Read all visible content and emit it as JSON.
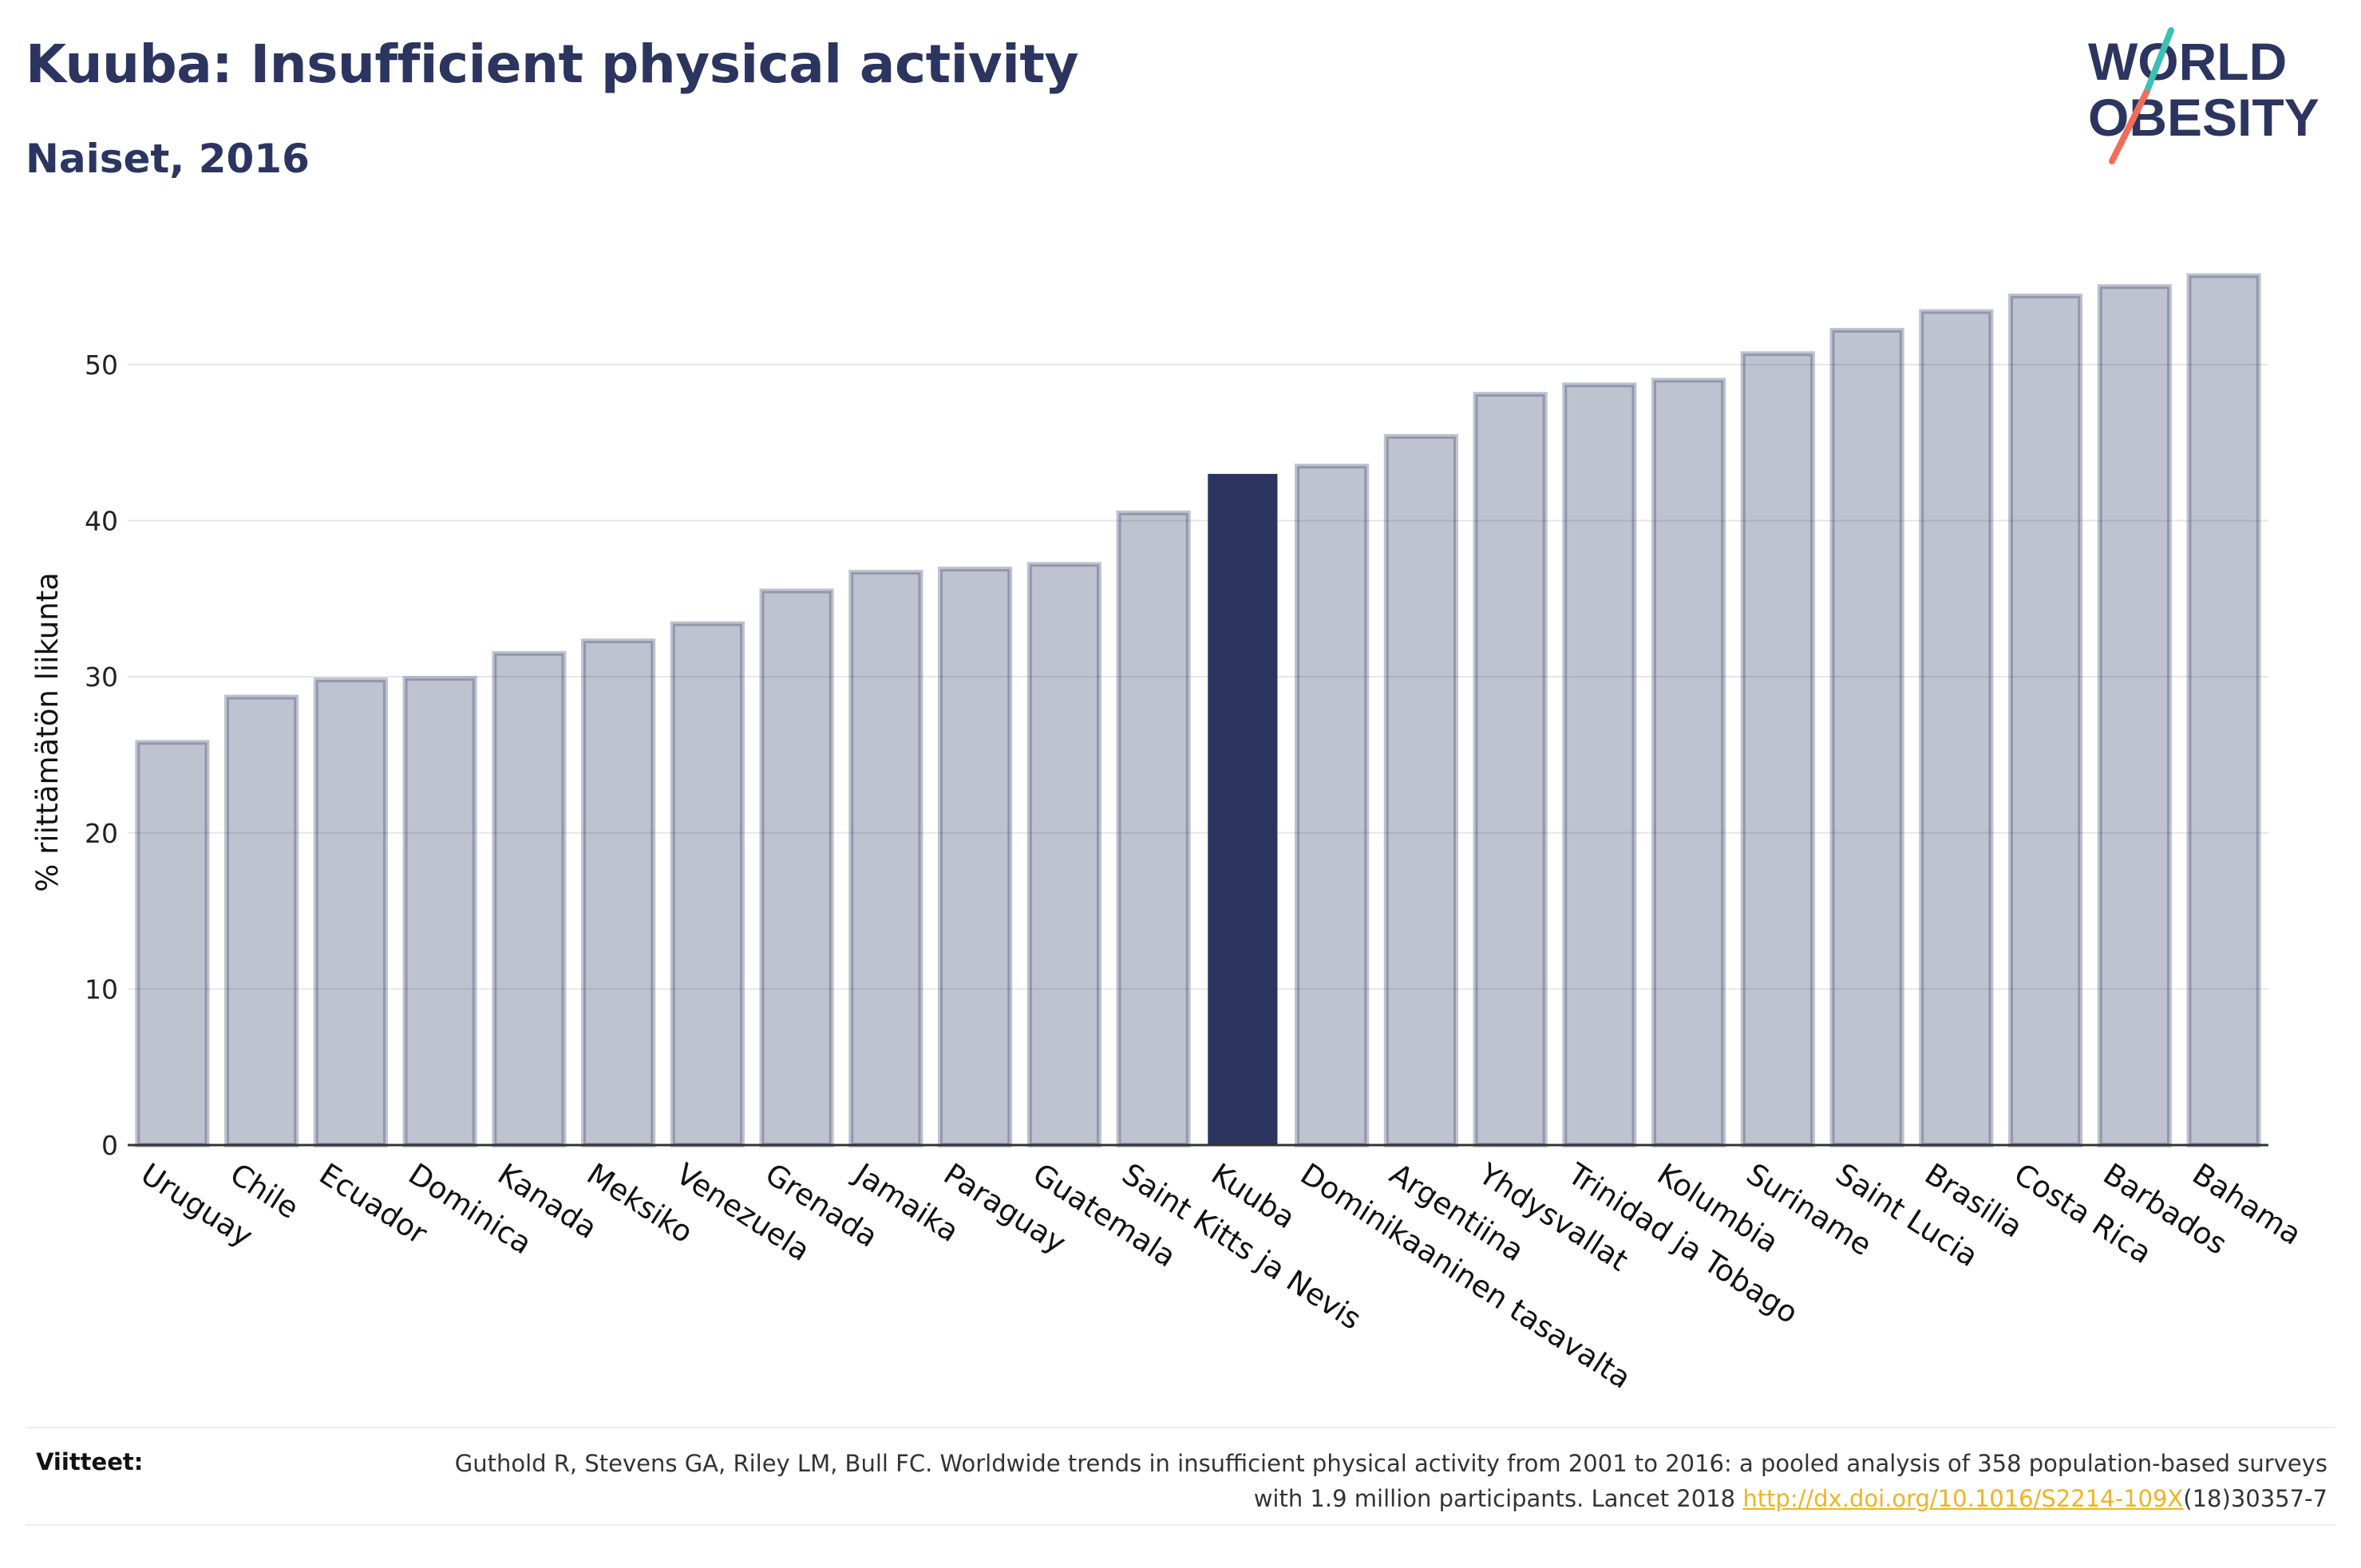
{
  "header": {
    "title": "Kuuba: Insufficient physical activity",
    "subtitle": "Naiset, 2016"
  },
  "logo": {
    "line1": "WORLD",
    "line2": "OBESITY",
    "accent_colors": [
      "#3cc0b4",
      "#f06c5b"
    ]
  },
  "chart_data": {
    "type": "bar",
    "title": "Kuuba: Insufficient physical activity",
    "subtitle": "Naiset, 2016",
    "xlabel": "",
    "ylabel": "% riittämätön liikunta",
    "ylim": [
      0,
      57
    ],
    "yticks": [
      0,
      10,
      20,
      30,
      40,
      50
    ],
    "grid": true,
    "highlight": "Kuuba",
    "colors": {
      "default": "#2b3560",
      "highlight": "#2b3560"
    },
    "categories": [
      "Uruguay",
      "Chile",
      "Ecuador",
      "Dominica",
      "Kanada",
      "Meksiko",
      "Venezuela",
      "Grenada",
      "Jamaika",
      "Paraguay",
      "Guatemala",
      "Saint Kitts ja Nevis",
      "Kuuba",
      "Dominikaaninen tasavalta",
      "Argentiina",
      "Yhdysvallat",
      "Trinidad ja Tobago",
      "Kolumbia",
      "Suriname",
      "Saint Lucia",
      "Brasilia",
      "Costa Rica",
      "Barbados",
      "Bahama"
    ],
    "values": [
      25.8,
      28.7,
      29.8,
      29.9,
      31.5,
      32.3,
      33.4,
      35.5,
      36.7,
      36.9,
      37.2,
      40.5,
      43.0,
      43.5,
      45.4,
      48.1,
      48.7,
      49.0,
      50.7,
      52.2,
      53.4,
      54.4,
      55.0,
      55.7
    ]
  },
  "footer": {
    "label": "Viitteet:",
    "reference_text": "Guthold R, Stevens GA, Riley LM, Bull FC. Worldwide trends in insufficient physical activity from 2001 to 2016: a pooled analysis of 358 population-based surveys with 1.9 million participants. Lancet 2018 ",
    "reference_link": "http://dx.doi.org/10.1016/S2214-109X",
    "reference_suffix": "(18)30357-7"
  }
}
